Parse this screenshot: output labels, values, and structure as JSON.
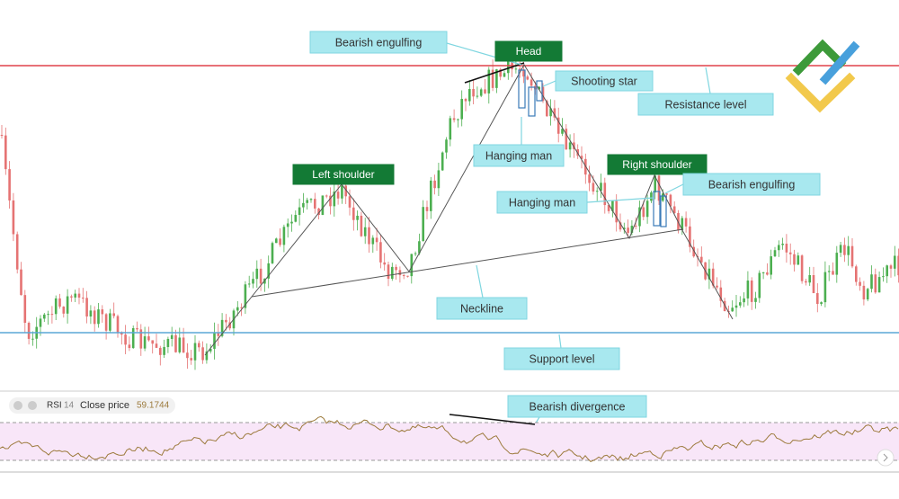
{
  "annotations": [
    "Bearish engulfing",
    "Head",
    "Shooting star",
    "Resistance level",
    "Hanging man",
    "Left shoulder",
    "Right shoulder",
    "Bearish engulfing",
    "Hanging man",
    "Neckline",
    "Support level",
    "Bearish divergence"
  ],
  "indicator": {
    "name": "RSI",
    "period": 14,
    "source": "Close price",
    "value": 59.1744
  }
}
